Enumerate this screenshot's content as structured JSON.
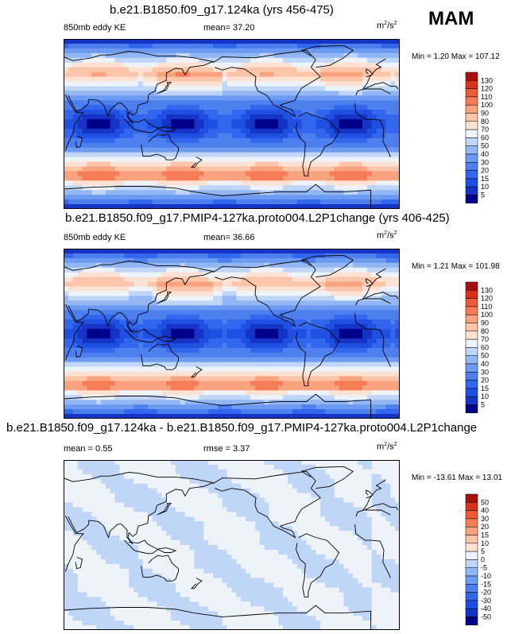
{
  "season": "MAM",
  "units_base": "m",
  "units_exp1": "2",
  "units_mid": "/s",
  "units_exp2": "2",
  "panels": [
    {
      "title": "b.e21.B1850.f09_g17.124ka (yrs 456-475)",
      "left_label": "850mb eddy KE",
      "stat_label": "mean= ",
      "stat_value": "37.20",
      "minmax_text": "Min =   1.20 Max = 107.12"
    },
    {
      "title": "b.e21.B1850.f09_g17.PMIP4-127ka.proto004.L2P1change (yrs 406-425)",
      "left_label": "850mb eddy KE",
      "stat_label": "mean= ",
      "stat_value": "36.66",
      "minmax_text": "Min =   1.21 Max = 101.98"
    },
    {
      "title": "b.e21.B1850.f09_g17.124ka - b.e21.B1850.f09_g17.PMIP4-127ka.proto004.L2P1change",
      "left_label": "mean =   0.55",
      "stat_label": "rmse = ",
      "stat_value": "3.37",
      "minmax_text": "Min = -13.61 Max =  13.01"
    }
  ],
  "chart_data": [
    {
      "type": "heatmap",
      "title": "b.e21.B1850.f09_g17.124ka (yrs 456-475)",
      "variable": "850mb eddy KE",
      "mean": 37.2,
      "min": 1.2,
      "max": 107.12,
      "colorbar_levels": [
        5,
        10,
        15,
        20,
        30,
        40,
        50,
        60,
        70,
        80,
        90,
        100,
        110,
        120,
        130
      ],
      "colors": [
        "#00008b",
        "#1533c4",
        "#1e4fe0",
        "#3366ee",
        "#4d7fef",
        "#6e9bf2",
        "#93b7f4",
        "#bfd6f7",
        "#eef3f9",
        "#fde2d3",
        "#fcc5aa",
        "#f9a27e",
        "#f57c56",
        "#ec5a36",
        "#d8321d",
        "#a50f0f"
      ]
    },
    {
      "type": "heatmap",
      "title": "b.e21.B1850.f09_g17.PMIP4-127ka.proto004.L2P1change (yrs 406-425)",
      "variable": "850mb eddy KE",
      "mean": 36.66,
      "min": 1.21,
      "max": 101.98,
      "colorbar_levels": [
        5,
        10,
        15,
        20,
        30,
        40,
        50,
        60,
        70,
        80,
        90,
        100,
        110,
        120,
        130
      ],
      "colors": [
        "#00008b",
        "#1533c4",
        "#1e4fe0",
        "#3366ee",
        "#4d7fef",
        "#6e9bf2",
        "#93b7f4",
        "#bfd6f7",
        "#eef3f9",
        "#fde2d3",
        "#fcc5aa",
        "#f9a27e",
        "#f57c56",
        "#ec5a36",
        "#d8321d",
        "#a50f0f"
      ]
    },
    {
      "type": "heatmap",
      "title": "b.e21.B1850.f09_g17.124ka - b.e21.B1850.f09_g17.PMIP4-127ka.proto004.L2P1change",
      "mean": 0.55,
      "rmse": 3.37,
      "min": -13.61,
      "max": 13.01,
      "colorbar_levels": [
        -50,
        -40,
        -30,
        -20,
        -15,
        -10,
        -5,
        0,
        5,
        10,
        15,
        20,
        30,
        40,
        50
      ],
      "colors": [
        "#00008b",
        "#1533c4",
        "#1e4fe0",
        "#3366ee",
        "#4d7fef",
        "#6e9bf2",
        "#93b7f4",
        "#bfd6f7",
        "#eef3f9",
        "#fde2d3",
        "#fcc5aa",
        "#f9a27e",
        "#f57c56",
        "#ec5a36",
        "#d8321d",
        "#a50f0f"
      ]
    }
  ]
}
